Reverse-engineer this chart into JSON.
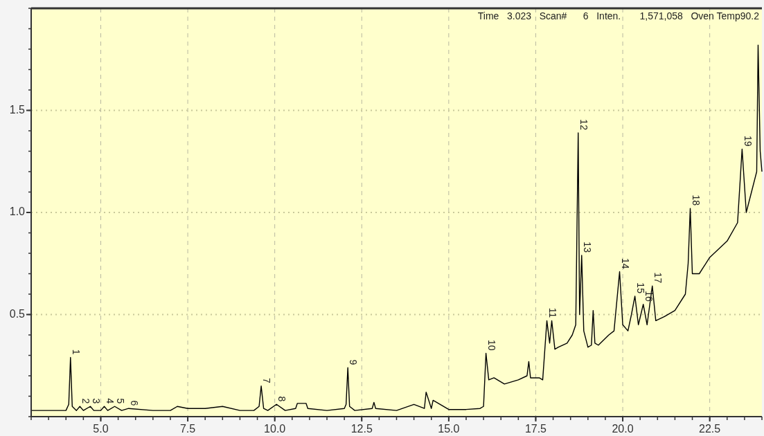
{
  "chart_data": {
    "type": "line",
    "xlim": [
      3.0,
      24.0
    ],
    "ylim": [
      0,
      2.0
    ],
    "xticks": [
      {
        "value": 5,
        "label": "5.0"
      },
      {
        "value": 7.5,
        "label": "7.5"
      },
      {
        "value": 10,
        "label": "10.0"
      },
      {
        "value": 12.5,
        "label": "12.5"
      },
      {
        "value": 15,
        "label": "15.0"
      },
      {
        "value": 17.5,
        "label": "17.5"
      },
      {
        "value": 20,
        "label": "20.0"
      },
      {
        "value": 22.5,
        "label": "22.5"
      }
    ],
    "yticks": [
      0.5,
      {
        "value": 1,
        "label": "1.0"
      },
      1.5
    ],
    "grid": true,
    "marker": "none",
    "line_style": "solid",
    "series": [
      {
        "color": "#000000",
        "x": [
          3.0,
          3.5,
          4.0,
          4.08,
          4.13,
          4.18,
          4.3,
          4.4,
          4.5,
          4.7,
          4.8,
          5.0,
          5.1,
          5.2,
          5.4,
          5.6,
          5.8,
          6.5,
          7.0,
          7.2,
          7.5,
          8.0,
          8.5,
          9.0,
          9.4,
          9.55,
          9.61,
          9.68,
          9.8,
          10.05,
          10.3,
          10.6,
          10.65,
          10.9,
          10.95,
          11.5,
          12.0,
          12.05,
          12.1,
          12.15,
          12.3,
          12.8,
          12.85,
          12.9,
          13.5,
          14.0,
          14.3,
          14.35,
          14.5,
          14.55,
          15.0,
          15.5,
          15.9,
          16.0,
          16.07,
          16.15,
          16.3,
          16.6,
          17.0,
          17.25,
          17.3,
          17.35,
          17.6,
          17.7,
          17.82,
          17.9,
          17.96,
          18.05,
          18.15,
          18.4,
          18.55,
          18.65,
          18.72,
          18.76,
          18.82,
          18.88,
          19.0,
          19.1,
          19.15,
          19.2,
          19.3,
          19.6,
          19.75,
          19.91,
          20.0,
          20.15,
          20.25,
          20.35,
          20.45,
          20.59,
          20.7,
          20.85,
          20.95,
          21.2,
          21.5,
          21.8,
          21.88,
          21.94,
          22.0,
          22.2,
          22.5,
          23.0,
          23.3,
          23.43,
          23.55,
          23.7,
          23.85,
          23.89,
          23.95,
          24.0
        ],
        "values": [
          0.03,
          0.03,
          0.03,
          0.06,
          0.29,
          0.05,
          0.03,
          0.05,
          0.03,
          0.05,
          0.03,
          0.03,
          0.05,
          0.03,
          0.05,
          0.03,
          0.04,
          0.03,
          0.03,
          0.05,
          0.04,
          0.04,
          0.05,
          0.03,
          0.03,
          0.05,
          0.15,
          0.04,
          0.03,
          0.06,
          0.03,
          0.04,
          0.065,
          0.065,
          0.04,
          0.03,
          0.04,
          0.06,
          0.24,
          0.05,
          0.03,
          0.04,
          0.07,
          0.04,
          0.03,
          0.06,
          0.04,
          0.12,
          0.04,
          0.08,
          0.035,
          0.035,
          0.04,
          0.05,
          0.31,
          0.18,
          0.19,
          0.16,
          0.18,
          0.2,
          0.27,
          0.19,
          0.19,
          0.18,
          0.47,
          0.36,
          0.47,
          0.33,
          0.34,
          0.36,
          0.4,
          0.45,
          1.39,
          0.5,
          0.79,
          0.42,
          0.34,
          0.35,
          0.52,
          0.36,
          0.35,
          0.4,
          0.42,
          0.71,
          0.45,
          0.42,
          0.5,
          0.59,
          0.45,
          0.55,
          0.45,
          0.64,
          0.47,
          0.49,
          0.52,
          0.6,
          0.75,
          1.02,
          0.7,
          0.7,
          0.78,
          0.86,
          0.95,
          1.31,
          1.0,
          1.1,
          1.2,
          1.82,
          1.3,
          1.2
        ]
      }
    ],
    "annotations": [
      "Time   3.023   Scan#      6   Inten.       1,571,058   Oven Temp90.2",
      {
        "text": "1",
        "x": 4.13,
        "y": 0.29
      },
      {
        "text": "2",
        "x": 4.4,
        "y": 0.05
      },
      {
        "text": "3",
        "x": 4.7,
        "y": 0.05
      },
      {
        "text": "4",
        "x": 5.1,
        "y": 0.05
      },
      {
        "text": "5",
        "x": 5.4,
        "y": 0.05
      },
      {
        "text": "6",
        "x": 5.8,
        "y": 0.04
      },
      {
        "text": "7",
        "x": 9.61,
        "y": 0.15
      },
      {
        "text": "8",
        "x": 10.05,
        "y": 0.06
      },
      {
        "text": "9",
        "x": 12.1,
        "y": 0.24
      },
      {
        "text": "10",
        "x": 16.07,
        "y": 0.31
      },
      {
        "text": "11",
        "x": 17.82,
        "y": 0.47
      },
      {
        "text": "12",
        "x": 18.72,
        "y": 1.39
      },
      {
        "text": "13",
        "x": 18.82,
        "y": 0.79
      },
      {
        "text": "14",
        "x": 19.91,
        "y": 0.71
      },
      {
        "text": "15",
        "x": 20.35,
        "y": 0.59
      },
      {
        "text": "16",
        "x": 20.59,
        "y": 0.55
      },
      {
        "text": "17",
        "x": 20.85,
        "y": 0.64
      },
      {
        "text": "18",
        "x": 21.94,
        "y": 1.02
      },
      {
        "text": "19",
        "x": 23.43,
        "y": 1.31
      }
    ]
  }
}
